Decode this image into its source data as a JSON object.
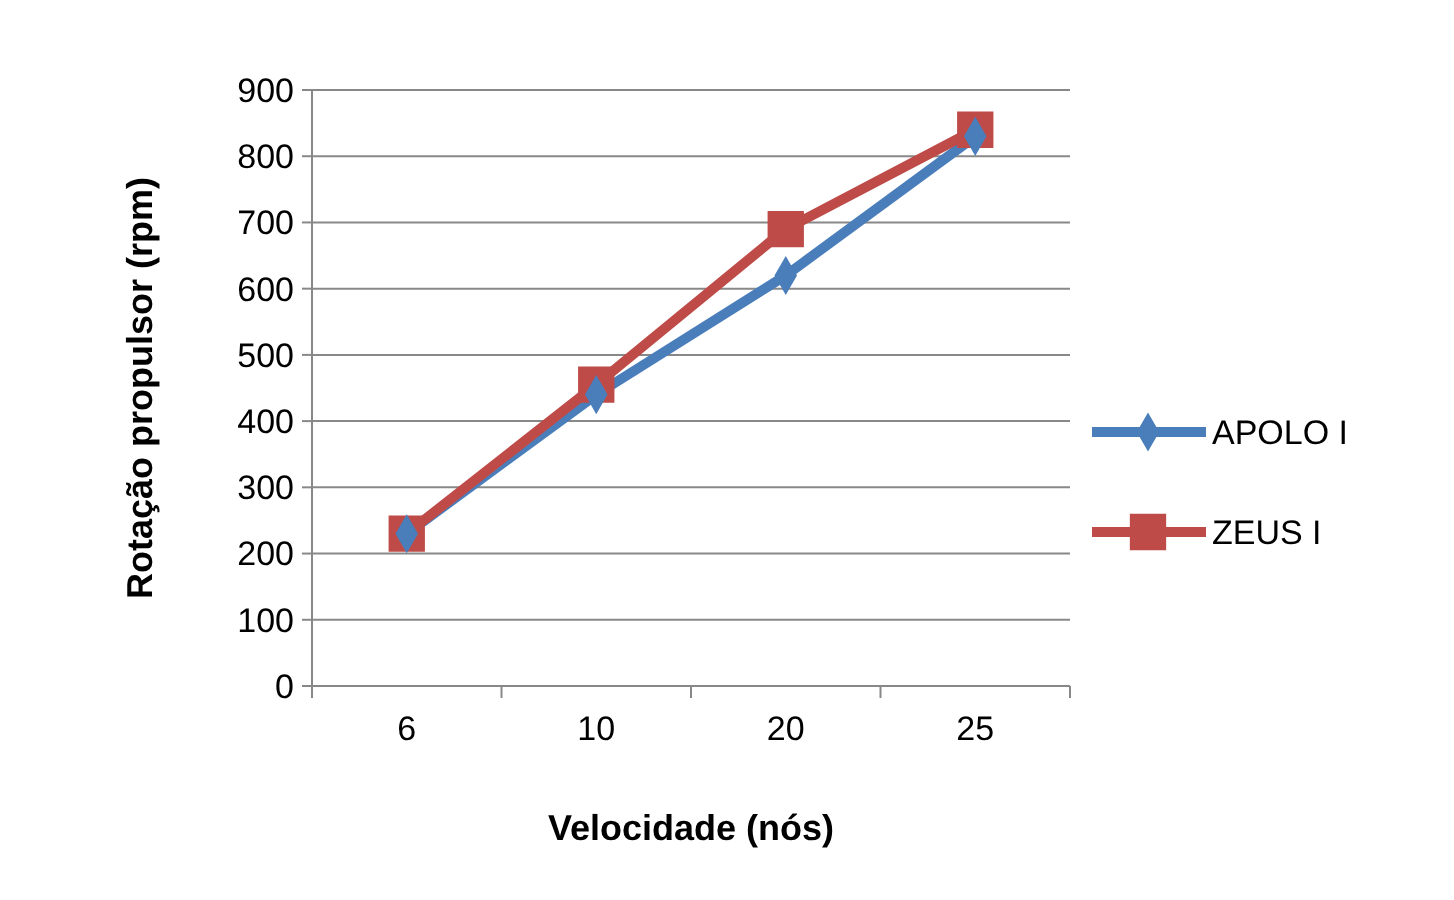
{
  "chart_data": {
    "type": "line",
    "xlabel": "Velocidade (nós)",
    "ylabel": "Rotação propulsor (rpm)",
    "categories": [
      "6",
      "10",
      "20",
      "25"
    ],
    "ylim": [
      0,
      900
    ],
    "yticks": [
      0,
      100,
      200,
      300,
      400,
      500,
      600,
      700,
      800,
      900
    ],
    "grid": "y",
    "legend": "right",
    "line_style": "solid",
    "series": [
      {
        "name": "APOLO I",
        "color": "#4a7ebb",
        "marker": "diamond",
        "values": [
          230,
          440,
          620,
          830
        ]
      },
      {
        "name": "ZEUS I",
        "color": "#be4b48",
        "marker": "square",
        "values": [
          230,
          455,
          690,
          840
        ]
      }
    ]
  }
}
